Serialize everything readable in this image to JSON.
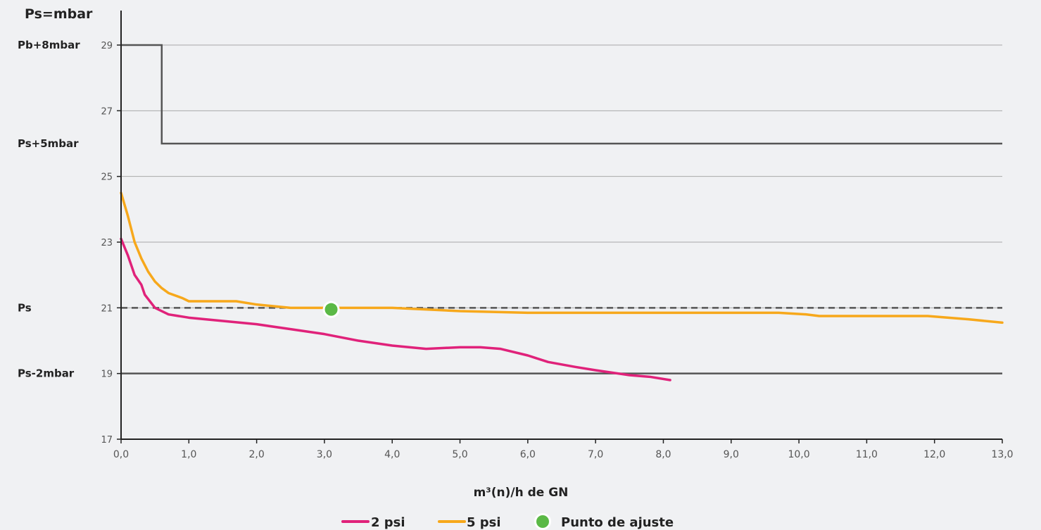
{
  "chart_data": {
    "type": "line",
    "ylabel": "Ps=mbar",
    "xlabel": "m³(n)/h de GN",
    "xlim": [
      0,
      13
    ],
    "ylim": [
      17,
      29
    ],
    "x_ticks": [
      "0,0",
      "1,0",
      "2,0",
      "3,0",
      "4,0",
      "5,0",
      "6,0",
      "7,0",
      "8,0",
      "9,0",
      "10,0",
      "11,0",
      "12,0",
      "13,0"
    ],
    "y_ticks": [
      "17",
      "19",
      "21",
      "23",
      "25",
      "27",
      "29"
    ],
    "reference_labels": [
      {
        "text": "Pb+8mbar",
        "y": 29
      },
      {
        "text": "Ps+5mbar",
        "y": 26
      },
      {
        "text": "Ps",
        "y": 21
      },
      {
        "text": "Ps-2mbar",
        "y": 19
      }
    ],
    "limit_line": {
      "color": "#555555",
      "points": [
        [
          0,
          29
        ],
        [
          0.6,
          29
        ],
        [
          0.6,
          26
        ],
        [
          13,
          26
        ]
      ]
    },
    "ps_line": {
      "y": 21,
      "color": "#555555",
      "style": "dashed"
    },
    "min_line": {
      "y": 19,
      "color": "#555555"
    },
    "grid": true,
    "series": [
      {
        "name": "2 psi",
        "color": "#e0227a",
        "points": [
          [
            0,
            23.1
          ],
          [
            0.1,
            22.6
          ],
          [
            0.2,
            22.0
          ],
          [
            0.3,
            21.7
          ],
          [
            0.35,
            21.4
          ],
          [
            0.5,
            21.0
          ],
          [
            0.7,
            20.8
          ],
          [
            1.0,
            20.7
          ],
          [
            1.5,
            20.6
          ],
          [
            2.0,
            20.5
          ],
          [
            2.5,
            20.35
          ],
          [
            3.0,
            20.2
          ],
          [
            3.5,
            20.0
          ],
          [
            4.0,
            19.85
          ],
          [
            4.5,
            19.75
          ],
          [
            5.0,
            19.8
          ],
          [
            5.3,
            19.8
          ],
          [
            5.6,
            19.75
          ],
          [
            6.0,
            19.55
          ],
          [
            6.3,
            19.35
          ],
          [
            6.7,
            19.2
          ],
          [
            7.0,
            19.1
          ],
          [
            7.5,
            18.95
          ],
          [
            7.8,
            18.9
          ],
          [
            8.1,
            18.8
          ]
        ]
      },
      {
        "name": "5 psi",
        "color": "#f7a81b",
        "points": [
          [
            0,
            24.5
          ],
          [
            0.1,
            23.8
          ],
          [
            0.2,
            23.0
          ],
          [
            0.3,
            22.5
          ],
          [
            0.4,
            22.1
          ],
          [
            0.5,
            21.8
          ],
          [
            0.6,
            21.6
          ],
          [
            0.7,
            21.45
          ],
          [
            0.9,
            21.3
          ],
          [
            1.0,
            21.2
          ],
          [
            1.5,
            21.2
          ],
          [
            1.7,
            21.2
          ],
          [
            2.0,
            21.1
          ],
          [
            2.5,
            21.0
          ],
          [
            3.0,
            21.0
          ],
          [
            3.5,
            21.0
          ],
          [
            4.0,
            21.0
          ],
          [
            5.0,
            20.9
          ],
          [
            6.0,
            20.85
          ],
          [
            7.0,
            20.85
          ],
          [
            8.0,
            20.85
          ],
          [
            9.0,
            20.85
          ],
          [
            9.7,
            20.85
          ],
          [
            10.1,
            20.8
          ],
          [
            10.3,
            20.75
          ],
          [
            11.0,
            20.75
          ],
          [
            11.5,
            20.75
          ],
          [
            11.9,
            20.75
          ],
          [
            12.5,
            20.65
          ],
          [
            13.0,
            20.55
          ]
        ]
      }
    ],
    "set_point": {
      "name": "Punto de ajuste",
      "x": 3.1,
      "y": 20.95,
      "color": "#5bb946"
    },
    "legend": {
      "placement": "bottom-center",
      "items": [
        "2 psi",
        "5 psi",
        "Punto de ajuste"
      ]
    }
  }
}
